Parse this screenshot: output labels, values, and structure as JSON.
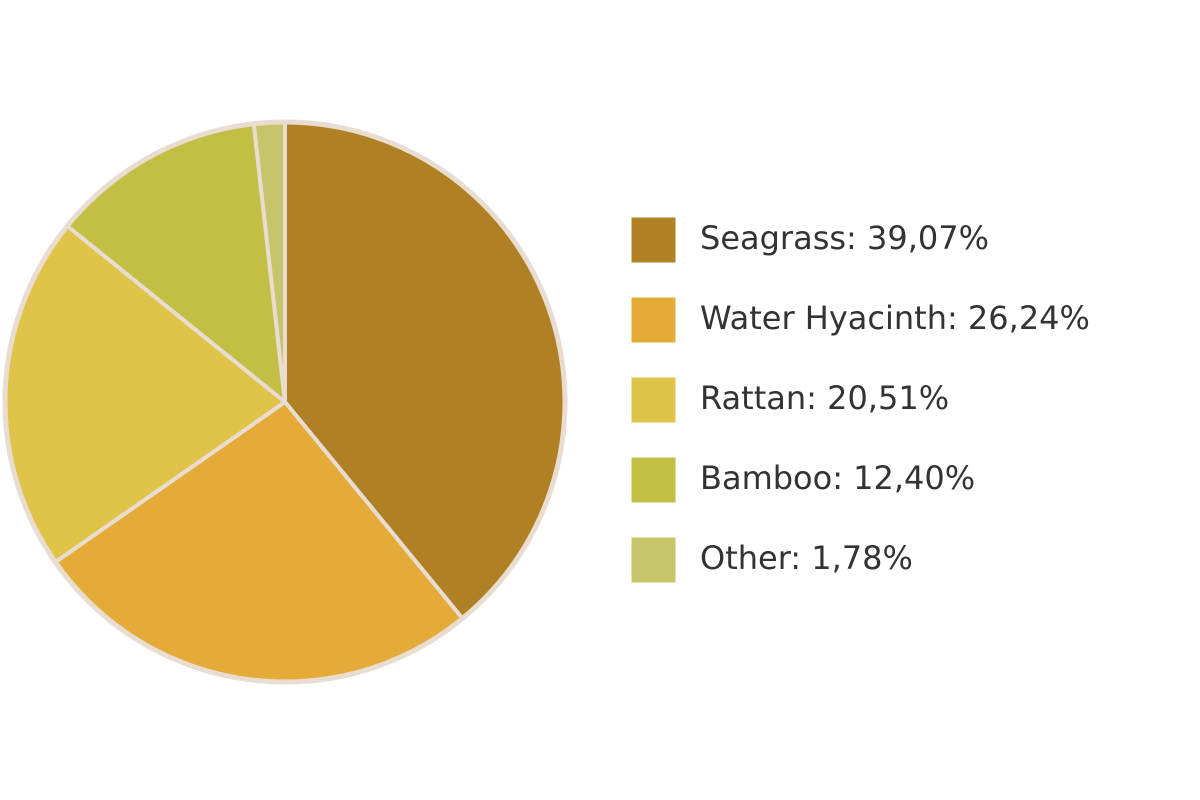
{
  "chart_data": {
    "type": "pie",
    "categories": [
      "Seagrass: 39,07%",
      "Water Hyacinth: 26,24%",
      "Rattan: 20,51%",
      "Bamboo: 12,40%",
      "Other: 1,78%"
    ],
    "values": [
      39.07,
      26.24,
      20.51,
      12.4,
      1.78
    ],
    "colors": [
      "#b08024",
      "#e5ab38",
      "#e0c44a",
      "#c3bf45",
      "#c6c56a"
    ]
  }
}
